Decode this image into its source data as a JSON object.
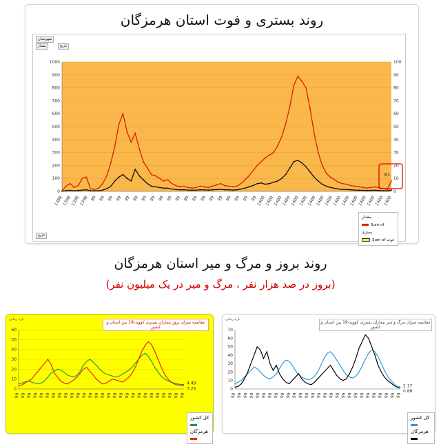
{
  "top": {
    "title": "روند بستری و فوت استان هرمزگان",
    "controls": [
      "شهرستان",
      "مقدار",
      "تاریخ"
    ],
    "callout_value": "81",
    "legend_title": "مقدار",
    "bottom_button": "تاریخ"
  },
  "middle": {
    "title": "روند بروز و مرگ و میر استان هرمزگان",
    "subtitle": "(بروز در صد هزار نفر ، مرگ و میر در یک میلیون نفر)"
  },
  "left_panel": {
    "chart_title": "مقایسه میزان بروز بیماران بستری کووید-19 بین استان و کشور",
    "end_label_1": "4.49",
    "end_label_2": "3.26",
    "controls": [
      "بازه زمانی",
      "شهرستان"
    ]
  },
  "right_panel": {
    "chart_title": "مقایسه میزان مرگ و میر بیماران بستری کووید-19 بین استان و کشور",
    "end_label_1": "2.17",
    "end_label_2": "0.88",
    "controls": [
      "بازه زمانی",
      "شهرستان"
    ]
  },
  "colors": {
    "top_bg": "#fbb84a",
    "top_red": "#d81e05",
    "yellow_bg": "#ffff00",
    "panel_red": "#e8281e",
    "panel_green": "#239b4b",
    "panel_blue": "#2a9bd8",
    "panel_black": "#000000"
  },
  "chart_data": [
    {
      "type": "line",
      "title": "روند بستری و فوت استان هرمزگان",
      "ylim": [
        0,
        1000
      ],
      "y_ticks": [
        "0",
        "100",
        "200",
        "300",
        "400",
        "500",
        "600",
        "700",
        "800",
        "900",
        "1000"
      ],
      "y2_ticks": [
        "0",
        "10",
        "20",
        "30",
        "40",
        "50",
        "60",
        "70",
        "80",
        "90",
        "100"
      ],
      "x_tick_sample": [
        "1398",
        "99",
        "99",
        "99",
        "99",
        "99",
        "99",
        "99",
        "1400",
        "1400",
        "1400",
        "1400",
        "1400",
        "1400",
        "1400"
      ],
      "legend": [
        "Sum of بستری",
        "Sum of فوت"
      ],
      "series": [
        {
          "name": "Sum of بستری",
          "color": "#d81e05",
          "values": [
            5,
            40,
            60,
            30,
            45,
            100,
            110,
            20,
            15,
            25,
            60,
            120,
            220,
            350,
            520,
            600,
            460,
            380,
            450,
            330,
            230,
            180,
            130,
            120,
            100,
            80,
            90,
            60,
            45,
            35,
            40,
            30,
            25,
            30,
            40,
            35,
            30,
            40,
            50,
            60,
            45,
            40,
            35,
            40,
            60,
            90,
            120,
            160,
            200,
            230,
            260,
            280,
            300,
            350,
            420,
            520,
            650,
            820,
            890,
            850,
            800,
            640,
            450,
            300,
            200,
            140,
            110,
            90,
            70,
            60,
            55,
            45,
            40,
            35,
            30,
            25,
            30,
            35,
            28,
            20,
            15,
            81
          ]
        },
        {
          "name": "Sum of فوت",
          "color": "#111111",
          "values": [
            2,
            6,
            8,
            5,
            7,
            10,
            12,
            5,
            4,
            5,
            10,
            20,
            40,
            80,
            110,
            130,
            100,
            80,
            170,
            120,
            90,
            60,
            40,
            35,
            30,
            25,
            25,
            18,
            14,
            12,
            13,
            10,
            9,
            10,
            12,
            11,
            10,
            12,
            14,
            16,
            13,
            12,
            10,
            12,
            18,
            25,
            35,
            45,
            60,
            65,
            55,
            60,
            70,
            80,
            100,
            130,
            180,
            230,
            240,
            220,
            190,
            150,
            110,
            80,
            55,
            40,
            30,
            24,
            18,
            15,
            14,
            12,
            10,
            9,
            8,
            7,
            8,
            9,
            7,
            5,
            4,
            10
          ]
        }
      ]
    },
    {
      "type": "line",
      "title": "مقایسه میزان بروز بیماران بستری کووید-19 بین استان و کشور",
      "ylim": [
        0,
        60
      ],
      "y_ticks": [
        "0",
        "10",
        "20",
        "30",
        "40",
        "50",
        "60"
      ],
      "legend": [
        "کل کشور",
        "هرمزگان"
      ],
      "series": [
        {
          "name": "کل کشور",
          "color": "#239b4b",
          "values": [
            5,
            6,
            7,
            8,
            7,
            6,
            5,
            6,
            8,
            12,
            16,
            18,
            20,
            19,
            17,
            14,
            13,
            12,
            14,
            18,
            24,
            28,
            30,
            27,
            24,
            20,
            17,
            15,
            14,
            13,
            12,
            13,
            15,
            17,
            19,
            22,
            26,
            30,
            34,
            36,
            33,
            28,
            22,
            17,
            13,
            10,
            8,
            7,
            6,
            5,
            4.5,
            4.49
          ]
        },
        {
          "name": "هرمزگان",
          "color": "#e8281e",
          "values": [
            3,
            4,
            6,
            8,
            10,
            14,
            18,
            22,
            26,
            30,
            25,
            16,
            12,
            8,
            6,
            5,
            7,
            9,
            12,
            16,
            20,
            22,
            18,
            14,
            10,
            7,
            5,
            6,
            8,
            10,
            9,
            8,
            7,
            9,
            12,
            16,
            22,
            30,
            38,
            44,
            48,
            45,
            38,
            30,
            22,
            15,
            10,
            7,
            5,
            4,
            3.5,
            3.26
          ]
        }
      ]
    },
    {
      "type": "line",
      "title": "مقایسه میزان مرگ و میر بیماران بستری کووید-19 بین استان و کشور",
      "ylim": [
        0,
        70
      ],
      "y_ticks": [
        "0",
        "10",
        "20",
        "30",
        "40",
        "50",
        "60",
        "70"
      ],
      "legend": [
        "کل کشور",
        "هرمزگان"
      ],
      "series": [
        {
          "name": "کل کشور",
          "color": "#2a9bd8",
          "values": [
            6,
            8,
            10,
            14,
            18,
            22,
            26,
            24,
            20,
            16,
            13,
            12,
            14,
            18,
            24,
            30,
            34,
            33,
            28,
            22,
            17,
            14,
            12,
            11,
            12,
            15,
            20,
            28,
            36,
            42,
            44,
            40,
            34,
            28,
            22,
            17,
            14,
            13,
            15,
            20,
            27,
            35,
            42,
            46,
            44,
            38,
            30,
            22,
            15,
            10,
            6,
            3,
            2.17
          ]
        },
        {
          "name": "هرمزگان",
          "color": "#000000",
          "values": [
            2,
            3,
            6,
            12,
            20,
            30,
            40,
            50,
            46,
            36,
            44,
            30,
            22,
            28,
            18,
            12,
            8,
            6,
            10,
            14,
            18,
            12,
            8,
            6,
            5,
            8,
            12,
            16,
            20,
            24,
            28,
            22,
            16,
            12,
            10,
            12,
            18,
            26,
            36,
            48,
            56,
            64,
            60,
            50,
            40,
            28,
            20,
            14,
            10,
            7,
            4,
            2,
            0.88
          ]
        }
      ]
    }
  ]
}
